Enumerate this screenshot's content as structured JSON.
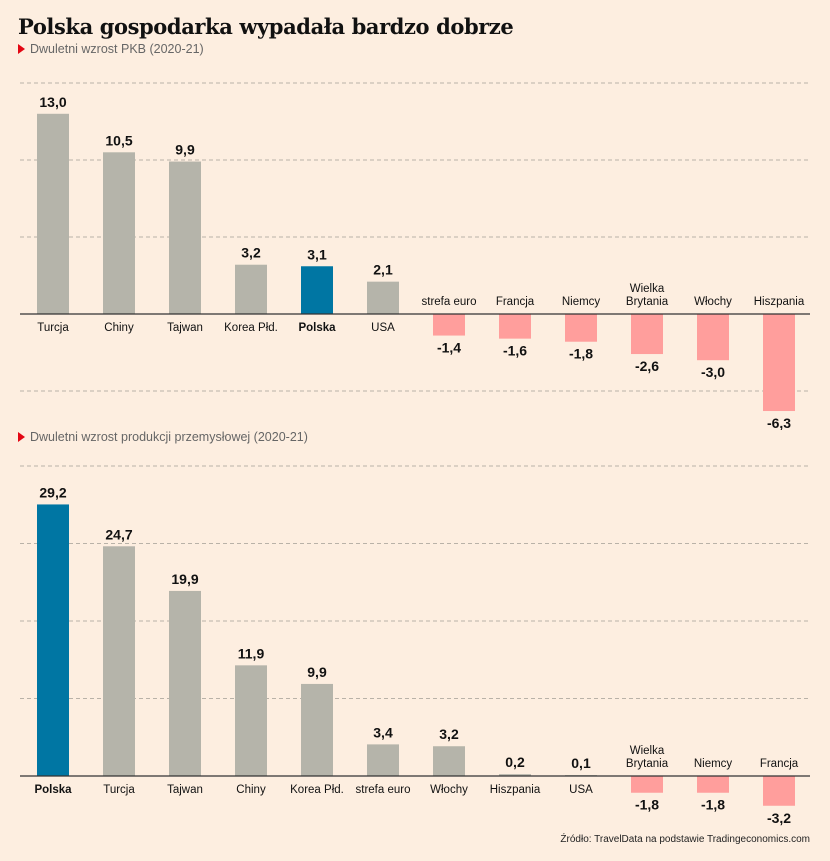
{
  "chart_data": [
    {
      "type": "bar",
      "title": "Polska gospodarka wypadała bardzo dobrze",
      "subtitle": "Dwuletni wzrost PKB (2020-21)",
      "categories": [
        "Turcja",
        "Chiny",
        "Tajwan",
        "Korea Płd.",
        "Polska",
        "USA",
        "strefa euro",
        "Francja",
        "Niemcy",
        "Wielka Brytania",
        "Włochy",
        "Hiszpania"
      ],
      "values": [
        13.0,
        10.5,
        9.9,
        3.2,
        3.1,
        2.1,
        -1.4,
        -1.6,
        -1.8,
        -2.6,
        -3.0,
        -6.3
      ],
      "labels": [
        "13,0",
        "10,5",
        "9,9",
        "3,2",
        "3,1",
        "2,1",
        "-1,4",
        "-1,6",
        "-1,8",
        "-2,6",
        "-3,0",
        "-6,3"
      ],
      "highlight": "Polska",
      "ylim": [
        -7.5,
        15
      ],
      "grid": true
    },
    {
      "type": "bar",
      "subtitle": "Dwuletni wzrost produkcji przemysłowej (2020-21)",
      "categories": [
        "Polska",
        "Turcja",
        "Tajwan",
        "Chiny",
        "Korea Płd.",
        "strefa euro",
        "Włochy",
        "Hiszpania",
        "USA",
        "Wielka Brytania",
        "Niemcy",
        "Francja"
      ],
      "values": [
        29.2,
        24.7,
        19.9,
        11.9,
        9.9,
        3.4,
        3.2,
        0.2,
        0.1,
        -1.8,
        -1.8,
        -3.2
      ],
      "labels": [
        "29,2",
        "24,7",
        "19,9",
        "11,9",
        "9,9",
        "3,4",
        "3,2",
        "0,2",
        "0,1",
        "-1,8",
        "-1,8",
        "-3,2"
      ],
      "highlight": "Polska",
      "ylim": [
        -5,
        30
      ],
      "grid": true
    }
  ],
  "source": "Źródło: TravelData na podstawie Tradingeconomics.com",
  "colors": {
    "background": "#fdeee0",
    "positive": "#b5b4aa",
    "negative": "#ff9e9c",
    "highlight": "#0076a3",
    "marker": "#e30613",
    "grid": "#b9b2a8"
  }
}
